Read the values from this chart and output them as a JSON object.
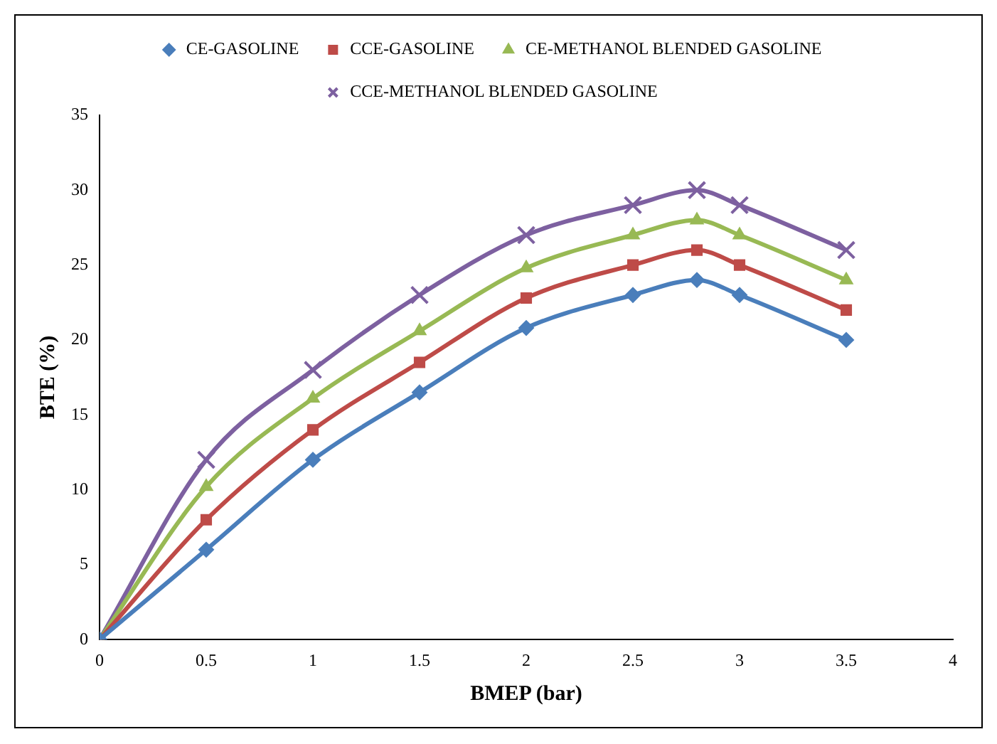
{
  "chart_data": {
    "type": "line",
    "xlabel": "BMEP (bar)",
    "ylabel": "BTE (%)",
    "x": [
      0,
      0.5,
      1,
      1.5,
      2,
      2.5,
      2.8,
      3,
      3.5
    ],
    "xlim": [
      0,
      4
    ],
    "xticks": [
      0,
      0.5,
      1,
      1.5,
      2,
      2.5,
      3,
      3.5,
      4
    ],
    "ylim": [
      0,
      35
    ],
    "yticks": [
      0,
      5,
      10,
      15,
      20,
      25,
      30,
      35
    ],
    "grid": false,
    "legend": "top",
    "series": [
      {
        "name": "CE-GASOLINE",
        "color": "#4a7ebb",
        "marker": "diamond",
        "values": [
          0,
          6,
          12,
          16.5,
          20.8,
          23,
          24,
          23,
          20
        ]
      },
      {
        "name": "CCE-GASOLINE",
        "color": "#be4b48",
        "marker": "square",
        "values": [
          0,
          8,
          14,
          18.5,
          22.8,
          25,
          26,
          25,
          22
        ]
      },
      {
        "name": "CE-METHANOL BLENDED GASOLINE",
        "color": "#98b954",
        "marker": "triangle",
        "values": [
          0,
          10.2,
          16.1,
          20.6,
          24.8,
          27,
          28,
          27,
          24
        ]
      },
      {
        "name": "CCE-METHANOL BLENDED GASOLINE",
        "color": "#7d60a0",
        "marker": "cross",
        "values": [
          0,
          12,
          18,
          23,
          27,
          29,
          30,
          29,
          26
        ]
      }
    ]
  }
}
